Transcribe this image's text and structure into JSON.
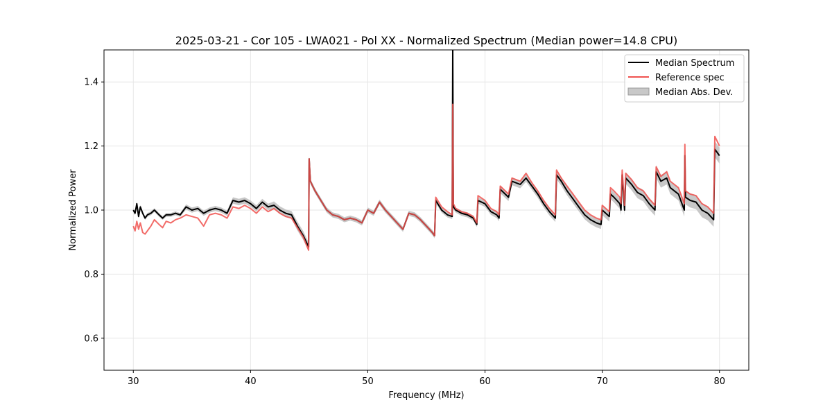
{
  "chart_data": {
    "type": "line",
    "title": "2025-03-21 - Cor 105 - LWA021 - Pol XX - Normalized Spectrum (Median power=14.8 CPU)",
    "xlabel": "Frequency (MHz)",
    "ylabel": "Normalized Power",
    "xlim": [
      27.5,
      82.5
    ],
    "ylim": [
      0.5,
      1.5
    ],
    "xticks": [
      30,
      40,
      50,
      60,
      70,
      80
    ],
    "yticks": [
      0.6,
      0.8,
      1.0,
      1.2,
      1.4
    ],
    "xtick_labels": [
      "30",
      "40",
      "50",
      "60",
      "70",
      "80"
    ],
    "ytick_labels": [
      "0.6",
      "0.8",
      "1.0",
      "1.2",
      "1.4"
    ],
    "grid": true,
    "legend_position": "top-right",
    "series": [
      {
        "name": "Median Spectrum",
        "color": "#000000",
        "x": [
          30.0,
          30.15,
          30.3,
          30.45,
          30.6,
          30.8,
          31.0,
          31.2,
          31.5,
          31.8,
          32.2,
          32.5,
          32.8,
          33.2,
          33.6,
          34.0,
          34.5,
          35.0,
          35.5,
          36.0,
          36.5,
          37.0,
          37.5,
          38.0,
          38.5,
          39.0,
          39.5,
          40.0,
          40.5,
          41.0,
          41.5,
          42.0,
          42.5,
          43.0,
          43.5,
          44.0,
          44.5,
          44.95,
          45.0,
          45.1,
          45.5,
          46.0,
          46.5,
          47.0,
          47.5,
          48.0,
          48.5,
          49.0,
          49.5,
          50.0,
          50.5,
          51.0,
          51.5,
          52.0,
          52.5,
          53.0,
          53.5,
          54.0,
          54.5,
          55.0,
          55.5,
          55.7,
          55.8,
          56.3,
          56.8,
          57.2,
          57.25,
          57.3,
          57.5,
          58.0,
          58.5,
          59.0,
          59.3,
          59.4,
          60.0,
          60.5,
          61.0,
          61.2,
          61.3,
          62.0,
          62.3,
          63.0,
          63.5,
          64.0,
          64.5,
          65.0,
          65.5,
          66.0,
          66.1,
          66.5,
          67.0,
          67.5,
          68.0,
          68.5,
          69.0,
          69.5,
          69.9,
          70.0,
          70.6,
          70.7,
          71.0,
          71.5,
          71.6,
          71.7,
          71.9,
          72.0,
          72.5,
          73.0,
          73.5,
          74.0,
          74.5,
          74.6,
          75.0,
          75.5,
          75.8,
          76.5,
          77.0,
          77.05,
          77.1,
          77.5,
          78.0,
          78.5,
          79.0,
          79.5,
          79.6,
          80.0
        ],
        "y": [
          1.0,
          0.99,
          1.02,
          0.98,
          1.01,
          0.99,
          0.975,
          0.985,
          0.99,
          1.0,
          0.985,
          0.975,
          0.985,
          0.985,
          0.99,
          0.985,
          1.01,
          1.0,
          1.005,
          0.99,
          1.0,
          1.005,
          1.0,
          0.99,
          1.03,
          1.025,
          1.03,
          1.02,
          1.005,
          1.025,
          1.01,
          1.015,
          1.0,
          0.99,
          0.985,
          0.95,
          0.92,
          0.885,
          1.16,
          1.09,
          1.06,
          1.03,
          1.0,
          0.985,
          0.98,
          0.97,
          0.975,
          0.97,
          0.96,
          1.0,
          0.99,
          1.025,
          1.0,
          0.98,
          0.96,
          0.94,
          0.99,
          0.985,
          0.97,
          0.95,
          0.93,
          0.92,
          1.03,
          1.0,
          0.985,
          0.98,
          1.5,
          1.01,
          1.0,
          0.99,
          0.985,
          0.975,
          0.955,
          1.03,
          1.02,
          0.995,
          0.985,
          0.975,
          1.065,
          1.04,
          1.09,
          1.08,
          1.1,
          1.075,
          1.05,
          1.02,
          0.995,
          0.975,
          1.11,
          1.09,
          1.06,
          1.035,
          1.01,
          0.985,
          0.97,
          0.96,
          0.955,
          1.0,
          0.98,
          1.05,
          1.04,
          1.02,
          1.0,
          1.11,
          1.0,
          1.1,
          1.08,
          1.055,
          1.045,
          1.02,
          1.0,
          1.12,
          1.09,
          1.1,
          1.07,
          1.05,
          1.0,
          1.17,
          1.04,
          1.03,
          1.025,
          1.0,
          0.99,
          0.97,
          1.19,
          1.17
        ]
      },
      {
        "name": "Reference spec",
        "color": "#f0524f",
        "x": [
          30.0,
          30.15,
          30.3,
          30.45,
          30.6,
          30.8,
          31.0,
          31.2,
          31.5,
          31.8,
          32.2,
          32.5,
          32.8,
          33.2,
          33.6,
          34.0,
          34.5,
          35.0,
          35.5,
          36.0,
          36.5,
          37.0,
          37.5,
          38.0,
          38.5,
          39.0,
          39.5,
          40.0,
          40.5,
          41.0,
          41.5,
          42.0,
          42.5,
          43.0,
          43.5,
          44.0,
          44.5,
          44.95,
          45.0,
          45.1,
          45.5,
          46.0,
          46.5,
          47.0,
          47.5,
          48.0,
          48.5,
          49.0,
          49.5,
          50.0,
          50.5,
          51.0,
          51.5,
          52.0,
          52.5,
          53.0,
          53.5,
          54.0,
          54.5,
          55.0,
          55.5,
          55.7,
          55.8,
          56.3,
          56.8,
          57.2,
          57.25,
          57.3,
          57.5,
          58.0,
          58.5,
          59.0,
          59.3,
          59.4,
          60.0,
          60.5,
          61.0,
          61.2,
          61.3,
          62.0,
          62.3,
          63.0,
          63.5,
          64.0,
          64.5,
          65.0,
          65.5,
          66.0,
          66.1,
          66.5,
          67.0,
          67.5,
          68.0,
          68.5,
          69.0,
          69.5,
          69.9,
          70.0,
          70.6,
          70.7,
          71.0,
          71.5,
          71.6,
          71.7,
          71.9,
          72.0,
          72.5,
          73.0,
          73.5,
          74.0,
          74.5,
          74.6,
          75.0,
          75.5,
          75.8,
          76.5,
          77.0,
          77.05,
          77.1,
          77.5,
          78.0,
          78.5,
          79.0,
          79.5,
          79.6,
          80.0
        ],
        "y": [
          0.95,
          0.935,
          0.965,
          0.94,
          0.96,
          0.93,
          0.925,
          0.935,
          0.95,
          0.97,
          0.955,
          0.945,
          0.965,
          0.96,
          0.97,
          0.975,
          0.985,
          0.98,
          0.975,
          0.95,
          0.985,
          0.99,
          0.985,
          0.975,
          1.01,
          1.005,
          1.015,
          1.005,
          0.99,
          1.01,
          0.995,
          1.005,
          0.99,
          0.98,
          0.975,
          0.945,
          0.915,
          0.875,
          1.16,
          1.09,
          1.06,
          1.03,
          1.0,
          0.985,
          0.98,
          0.97,
          0.975,
          0.97,
          0.96,
          1.0,
          0.99,
          1.025,
          1.0,
          0.98,
          0.96,
          0.94,
          0.99,
          0.985,
          0.97,
          0.95,
          0.93,
          0.92,
          1.04,
          1.01,
          0.995,
          0.985,
          1.33,
          1.02,
          1.005,
          0.995,
          0.99,
          0.98,
          0.96,
          1.045,
          1.03,
          1.005,
          0.995,
          0.985,
          1.075,
          1.05,
          1.1,
          1.09,
          1.115,
          1.085,
          1.06,
          1.03,
          1.005,
          0.985,
          1.125,
          1.1,
          1.075,
          1.05,
          1.025,
          1.0,
          0.985,
          0.975,
          0.97,
          1.015,
          0.995,
          1.07,
          1.06,
          1.04,
          1.02,
          1.125,
          1.015,
          1.115,
          1.095,
          1.07,
          1.06,
          1.035,
          1.015,
          1.135,
          1.105,
          1.12,
          1.09,
          1.07,
          1.02,
          1.205,
          1.06,
          1.05,
          1.045,
          1.02,
          1.01,
          0.99,
          1.23,
          1.2
        ]
      }
    ],
    "band": {
      "name": "Median Abs. Dev.",
      "color": "#c8c8c8",
      "halfwidth": [
        0.006,
        0.006,
        0.006,
        0.006,
        0.006,
        0.006,
        0.006,
        0.006,
        0.006,
        0.006,
        0.006,
        0.006,
        0.006,
        0.006,
        0.006,
        0.006,
        0.008,
        0.008,
        0.008,
        0.008,
        0.008,
        0.008,
        0.008,
        0.008,
        0.01,
        0.01,
        0.01,
        0.01,
        0.01,
        0.01,
        0.01,
        0.012,
        0.012,
        0.012,
        0.012,
        0.014,
        0.014,
        0.014,
        0.01,
        0.008,
        0.008,
        0.008,
        0.008,
        0.008,
        0.008,
        0.008,
        0.008,
        0.008,
        0.008,
        0.008,
        0.008,
        0.008,
        0.008,
        0.008,
        0.008,
        0.008,
        0.008,
        0.008,
        0.008,
        0.008,
        0.008,
        0.008,
        0.008,
        0.008,
        0.008,
        0.008,
        0.008,
        0.008,
        0.008,
        0.008,
        0.008,
        0.008,
        0.008,
        0.01,
        0.01,
        0.01,
        0.01,
        0.01,
        0.012,
        0.012,
        0.012,
        0.012,
        0.012,
        0.012,
        0.012,
        0.012,
        0.012,
        0.012,
        0.014,
        0.014,
        0.014,
        0.014,
        0.014,
        0.014,
        0.014,
        0.014,
        0.014,
        0.016,
        0.016,
        0.016,
        0.016,
        0.016,
        0.016,
        0.016,
        0.016,
        0.018,
        0.018,
        0.018,
        0.018,
        0.018,
        0.018,
        0.02,
        0.02,
        0.02,
        0.02,
        0.02,
        0.02,
        0.022,
        0.022,
        0.022,
        0.022,
        0.022,
        0.022,
        0.022,
        0.025,
        0.025
      ]
    }
  }
}
